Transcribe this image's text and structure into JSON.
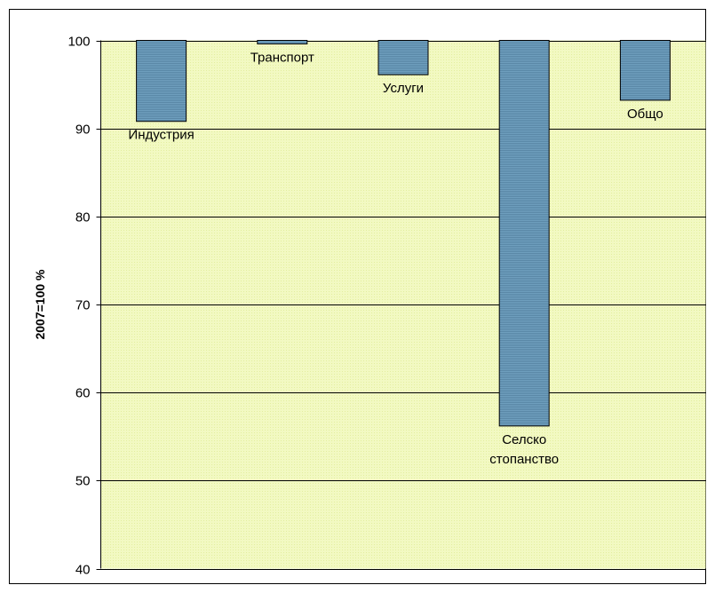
{
  "colors": {
    "plot_area": "#f2f9c2",
    "bar_fill": "#6f9fbe",
    "bar_stroke": "#000000",
    "gridline": "#000000",
    "frame": "#000000"
  },
  "chart_data": {
    "type": "bar",
    "title": "",
    "xlabel": "",
    "ylabel": "2007=100 %",
    "ylim": [
      40,
      100
    ],
    "baseline": 100,
    "yticks": [
      40,
      50,
      60,
      70,
      80,
      90,
      100
    ],
    "grid": true,
    "categories": [
      "Индустрия",
      "Транспорт",
      "Услуги",
      "Селско стопанство",
      "Общо"
    ],
    "label_lines": [
      [
        "Индустрия"
      ],
      [
        "Транспорт"
      ],
      [
        "Услуги"
      ],
      [
        "Селско",
        "стопанство"
      ],
      [
        "Общо"
      ]
    ],
    "values": [
      90.8,
      99.6,
      96.1,
      56.2,
      93.2
    ]
  }
}
